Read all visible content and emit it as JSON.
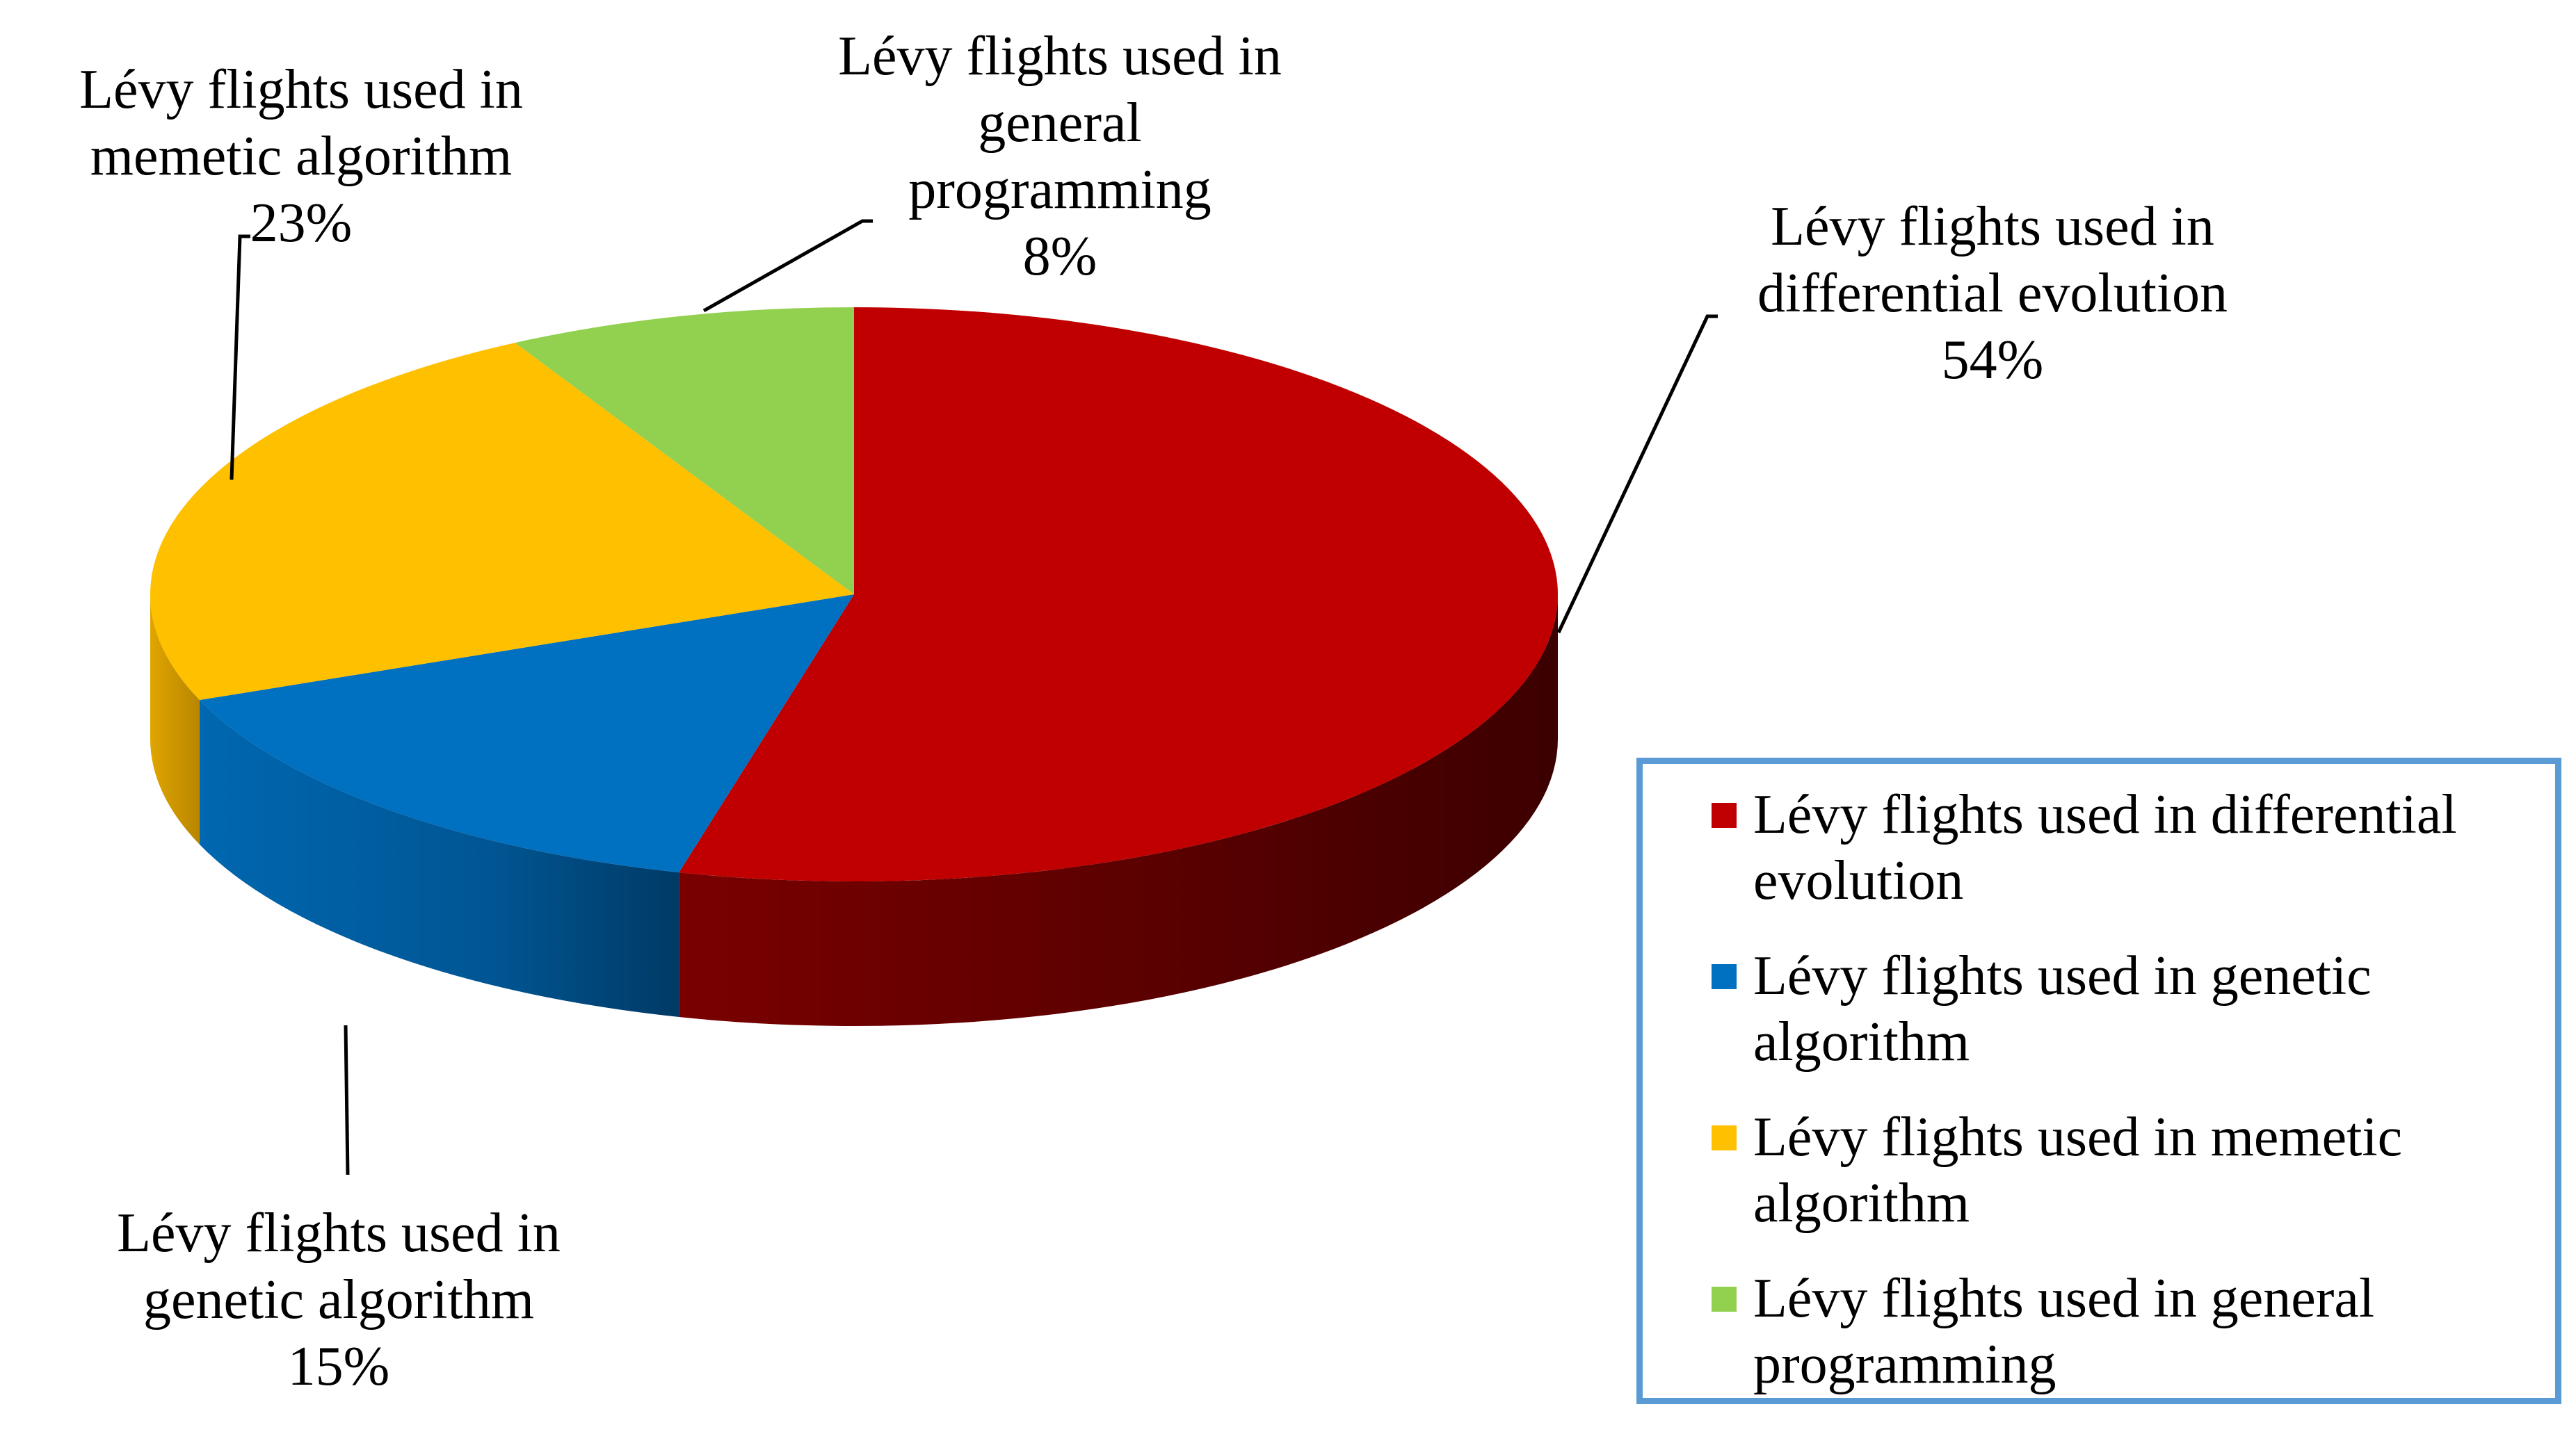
{
  "chart_data": {
    "type": "pie",
    "style": "3d",
    "legend_position": "bottom-right",
    "series": [
      {
        "values": [
          54,
          15,
          23,
          8
        ],
        "categories": [
          "Lévy flights used in differential evolution",
          "Lévy flights used in genetic algorithm",
          "Lévy flights used in memetic algorithm",
          "Lévy flights used in general programming"
        ]
      }
    ],
    "slices": [
      {
        "key": "de",
        "category": "Lévy flights used in differential evolution",
        "value": 54,
        "data_label": [
          "Lévy flights used in",
          "differential evolution",
          "54%"
        ],
        "color": "#c00000",
        "side_color": "#7a0000"
      },
      {
        "key": "ga",
        "category": "Lévy flights used in genetic algorithm",
        "value": 15,
        "data_label": [
          "Lévy flights used in",
          "genetic algorithm",
          "15%"
        ],
        "color": "#0070c0",
        "side_color": "#004f8a"
      },
      {
        "key": "ma",
        "category": "Lévy flights used in memetic algorithm",
        "value": 23,
        "data_label": [
          "Lévy flights used in",
          "memetic algorithm",
          "23%"
        ],
        "color": "#ffc000",
        "side_color": "#c98f00"
      },
      {
        "key": "gp",
        "category": "Lévy flights used in general programming",
        "value": 8,
        "data_label": [
          "Lévy flights used in",
          "general",
          "programming",
          "8%"
        ],
        "color": "#92d050",
        "side_color": "#5e8f2e"
      }
    ],
    "legend": {
      "border_color": "#5b9bd5",
      "entries": [
        {
          "lines": [
            "Lévy flights used in differential",
            "evolution"
          ],
          "color": "#c00000"
        },
        {
          "lines": [
            "Lévy flights used in genetic",
            "algorithm"
          ],
          "color": "#0070c0"
        },
        {
          "lines": [
            "Lévy flights used in memetic",
            "algorithm"
          ],
          "color": "#ffc000"
        },
        {
          "lines": [
            "Lévy flights used in general",
            "programming"
          ],
          "color": "#92d050"
        }
      ]
    }
  }
}
